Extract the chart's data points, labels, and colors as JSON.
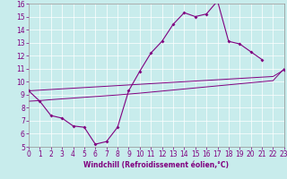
{
  "title": "",
  "xlabel": "Windchill (Refroidissement éolien,°C)",
  "bg_color": "#c8ecec",
  "line_color": "#800080",
  "x_data": [
    0,
    1,
    2,
    3,
    4,
    5,
    6,
    7,
    8,
    9,
    10,
    11,
    12,
    13,
    14,
    15,
    16,
    17,
    18,
    19,
    20,
    21,
    22,
    23
  ],
  "y_main": [
    9.3,
    8.5,
    7.4,
    7.2,
    6.6,
    6.5,
    5.2,
    5.4,
    6.5,
    9.3,
    10.8,
    12.2,
    13.1,
    14.4,
    15.3,
    15.0,
    15.2,
    16.2,
    13.1,
    12.9,
    12.3,
    11.7,
    null,
    10.9
  ],
  "y_reg1": [
    8.5,
    8.55,
    8.62,
    8.68,
    8.74,
    8.8,
    8.86,
    8.92,
    8.98,
    9.05,
    9.12,
    9.2,
    9.28,
    9.36,
    9.44,
    9.52,
    9.6,
    9.68,
    9.76,
    9.84,
    9.92,
    10.0,
    10.08,
    11.0
  ],
  "y_reg2": [
    9.3,
    9.35,
    9.4,
    9.45,
    9.5,
    9.55,
    9.6,
    9.65,
    9.7,
    9.75,
    9.8,
    9.85,
    9.9,
    9.95,
    10.0,
    10.05,
    10.1,
    10.15,
    10.2,
    10.25,
    10.3,
    10.35,
    10.4,
    10.91
  ],
  "xlim": [
    0,
    23
  ],
  "ylim": [
    5,
    16
  ],
  "yticks": [
    5,
    6,
    7,
    8,
    9,
    10,
    11,
    12,
    13,
    14,
    15,
    16
  ],
  "xticks": [
    0,
    1,
    2,
    3,
    4,
    5,
    6,
    7,
    8,
    9,
    10,
    11,
    12,
    13,
    14,
    15,
    16,
    17,
    18,
    19,
    20,
    21,
    22,
    23
  ],
  "tick_fontsize": 5.5,
  "xlabel_fontsize": 5.5,
  "marker": "D",
  "markersize": 2.0,
  "linewidth": 0.8,
  "reg_linewidth": 0.7
}
